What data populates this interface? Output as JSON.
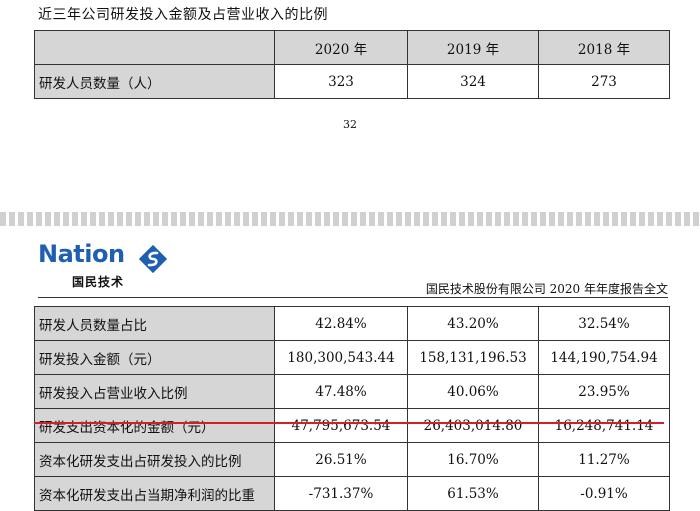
{
  "top_section": {
    "title": "近三年公司研发投入金额及占营业收入的比例",
    "headers": [
      "",
      "2020 年",
      "2019 年",
      "2018 年"
    ],
    "rows": [
      {
        "label": "研发人员数量（人）",
        "values": [
          "323",
          "324",
          "273"
        ]
      }
    ]
  },
  "page_number": "32",
  "header": {
    "logo_word": "Nation",
    "logo_sub": "国民技术",
    "doc_title": "国民技术股份有限公司 2020 年年度报告全文"
  },
  "main_table": {
    "rows": [
      {
        "label": "研发人员数量占比",
        "values": [
          "42.84%",
          "43.20%",
          "32.54%"
        ]
      },
      {
        "label": "研发投入金额（元）",
        "values": [
          "180,300,543.44",
          "158,131,196.53",
          "144,190,754.94"
        ]
      },
      {
        "label": "研发投入占营业收入比例",
        "values": [
          "47.48%",
          "40.06%",
          "23.95%"
        ]
      },
      {
        "label": "研发支出资本化的金额（元）",
        "values": [
          "47,795,673.54",
          "26,403,014.80",
          "16,248,741.14"
        ]
      },
      {
        "label": "资本化研发支出占研发投入的比例",
        "values": [
          "26.51%",
          "16.70%",
          "11.27%"
        ]
      },
      {
        "label": "资本化研发支出占当期净利润的比重",
        "values": [
          "-731.37%",
          "61.53%",
          "-0.91%"
        ]
      }
    ]
  },
  "colors": {
    "logo_blue": "#1f5fb3",
    "label_bg": "#d6d6d6",
    "highlight_red": "#d0202a"
  }
}
